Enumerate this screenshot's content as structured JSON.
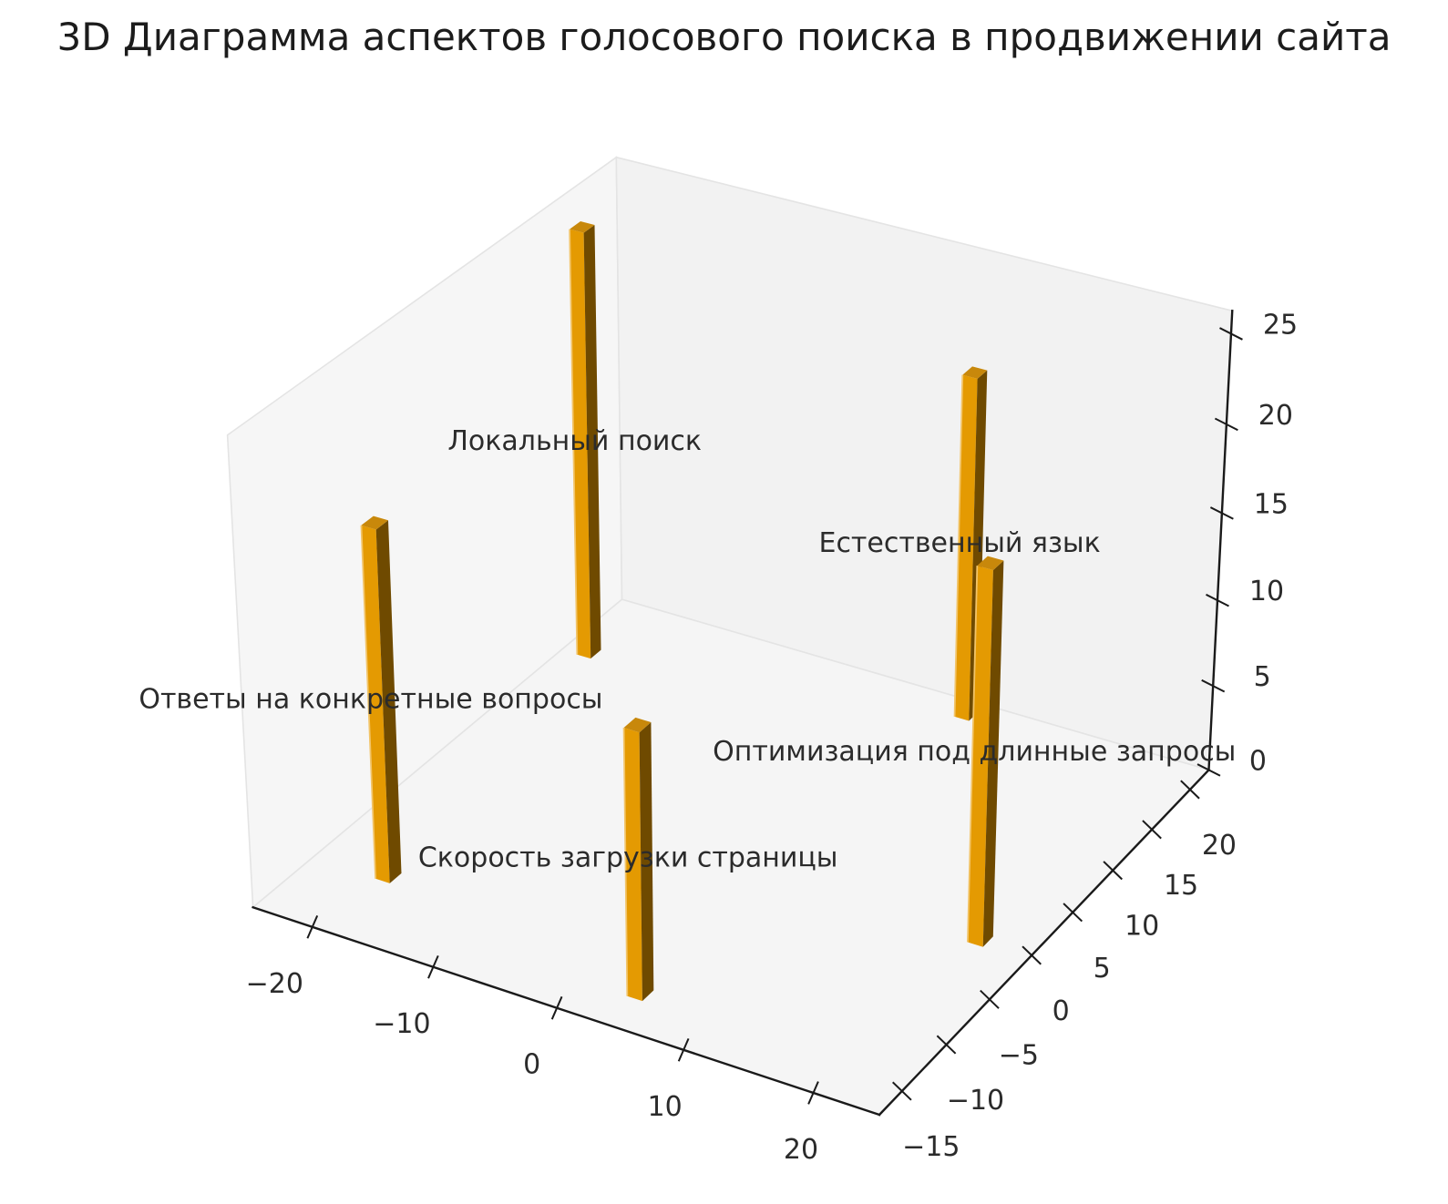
{
  "title": "3D Диаграмма аспектов голосового поиска в продвижении сайта",
  "chart_data": {
    "type": "bar",
    "subtype": "bar3d",
    "title": "3D Диаграмма аспектов голосового поиска в продвижении сайта",
    "bars": [
      {
        "label": "Локальный поиск",
        "x": -23,
        "y": 16,
        "value": 25
      },
      {
        "label": "Ответы на конкретные вопросы",
        "x": -19,
        "y": -11,
        "value": 20
      },
      {
        "label": "Скорость загрузки страницы",
        "x": 4,
        "y": -14,
        "value": 15
      },
      {
        "label": "Естественный язык",
        "x": 6,
        "y": 21,
        "value": 20
      },
      {
        "label": "Оптимизация под длинные запросы",
        "x": 21,
        "y": 0,
        "value": 21
      }
    ],
    "bar_size": {
      "dx": 1.2,
      "dy": 1.2
    },
    "xticks": [
      -20,
      -10,
      0,
      10,
      20
    ],
    "yticks": [
      -15,
      -10,
      -5,
      0,
      5,
      10,
      15,
      20
    ],
    "zticks": [
      0,
      5,
      10,
      15,
      20,
      25
    ],
    "xlim": [
      -25,
      25
    ],
    "ylim": [
      -17.5,
      22.5
    ],
    "zlim": [
      0,
      26.25
    ],
    "view": {
      "elev": 30,
      "azim": -60
    },
    "grid": false,
    "legend": false,
    "colors": {
      "bar_front": "#E49A02",
      "bar_side": "#6F4A00",
      "bar_top": "#C8880B",
      "bar_edge_highlight": "#F2C468",
      "pane_left": "#F6F6F6",
      "pane_right": "#F2F2F2",
      "pane_floor": "#F5F5F5",
      "pane_edge": "#E4E4E4",
      "axis": "#1A1A1A",
      "text": "#2B2B2B",
      "background": "#FFFFFF"
    }
  }
}
